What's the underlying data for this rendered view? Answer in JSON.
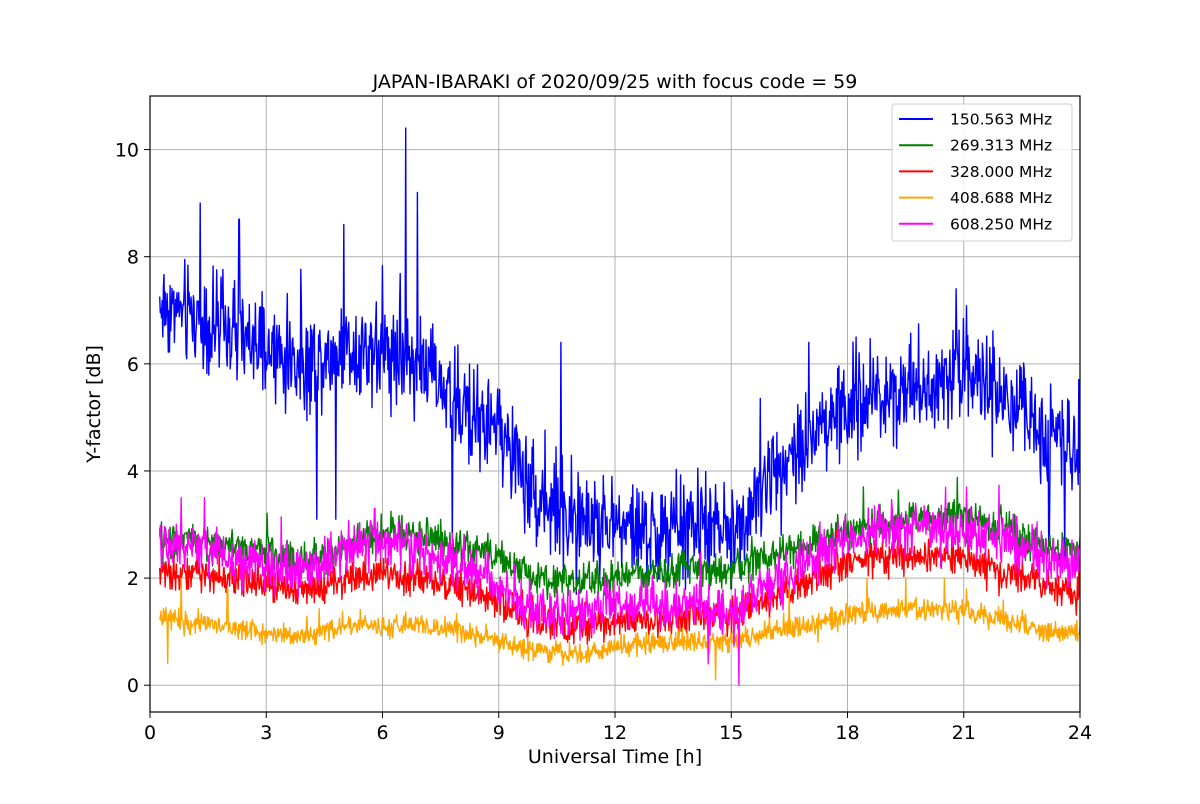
{
  "chart_data": {
    "type": "line",
    "title": "JAPAN-IBARAKI of 2020/09/25 with focus code = 59",
    "xlabel": "Universal Time [h]",
    "ylabel": "Y-factor [dB]",
    "xlim": [
      0,
      24
    ],
    "ylim": [
      -0.5,
      11
    ],
    "xticks": [
      0,
      3,
      6,
      9,
      12,
      15,
      18,
      21,
      24
    ],
    "xtick_labels": [
      "0",
      "3",
      "6",
      "9",
      "12",
      "15",
      "18",
      "21",
      "24"
    ],
    "yticks": [
      0,
      2,
      4,
      6,
      8,
      10
    ],
    "ytick_labels": [
      "0",
      "2",
      "4",
      "6",
      "8",
      "10"
    ],
    "grid": true,
    "legend_position": "top-right",
    "x_start": 0.25,
    "x_end": 24,
    "series": [
      {
        "name": "150.563 MHz",
        "color": "#0000ff",
        "noise": 0.7,
        "spikes": [
          [
            6.6,
            10.4
          ],
          [
            6.9,
            9.2
          ],
          [
            1.3,
            9.0
          ],
          [
            5.0,
            8.6
          ],
          [
            2.3,
            8.7
          ],
          [
            20.8,
            7.4
          ],
          [
            10.6,
            6.4
          ],
          [
            17.0,
            6.4
          ]
        ],
        "dips": [
          [
            4.3,
            3.1
          ],
          [
            4.8,
            3.1
          ],
          [
            7.8,
            2.6
          ],
          [
            11.0,
            1.7
          ],
          [
            15.0,
            1.8
          ],
          [
            23.2,
            2.6
          ],
          [
            23.6,
            2.4
          ]
        ],
        "trend": [
          [
            0.25,
            7.1
          ],
          [
            1,
            6.9
          ],
          [
            2,
            6.6
          ],
          [
            3,
            6.2
          ],
          [
            4,
            6.0
          ],
          [
            5,
            6.3
          ],
          [
            6,
            6.3
          ],
          [
            7,
            6.0
          ],
          [
            8,
            5.2
          ],
          [
            9,
            4.8
          ],
          [
            10,
            3.5
          ],
          [
            11,
            3.1
          ],
          [
            12,
            3.0
          ],
          [
            13,
            2.8
          ],
          [
            14,
            3.0
          ],
          [
            15,
            2.8
          ],
          [
            15.5,
            3.4
          ],
          [
            16,
            3.9
          ],
          [
            17,
            4.7
          ],
          [
            18,
            5.2
          ],
          [
            19,
            5.5
          ],
          [
            20,
            5.6
          ],
          [
            21,
            6.0
          ],
          [
            22,
            5.3
          ],
          [
            23,
            4.8
          ],
          [
            24,
            4.6
          ]
        ]
      },
      {
        "name": "269.313 MHz",
        "color": "#008000",
        "noise": 0.25,
        "spikes": [],
        "dips": [],
        "trend": [
          [
            0.25,
            2.7
          ],
          [
            1,
            2.7
          ],
          [
            2,
            2.6
          ],
          [
            3,
            2.5
          ],
          [
            4,
            2.3
          ],
          [
            5,
            2.6
          ],
          [
            6,
            2.9
          ],
          [
            7,
            2.8
          ],
          [
            8,
            2.6
          ],
          [
            9,
            2.4
          ],
          [
            10,
            2.0
          ],
          [
            11,
            1.9
          ],
          [
            12,
            2.0
          ],
          [
            13,
            2.1
          ],
          [
            14,
            2.2
          ],
          [
            15,
            2.1
          ],
          [
            16,
            2.4
          ],
          [
            17,
            2.6
          ],
          [
            18,
            2.9
          ],
          [
            19,
            3.0
          ],
          [
            20,
            3.1
          ],
          [
            21,
            3.2
          ],
          [
            22,
            2.9
          ],
          [
            23,
            2.6
          ],
          [
            24,
            2.5
          ]
        ]
      },
      {
        "name": "328.000 MHz",
        "color": "#ff0000",
        "noise": 0.25,
        "spikes": [],
        "dips": [],
        "trend": [
          [
            0.25,
            2.1
          ],
          [
            1,
            2.1
          ],
          [
            2,
            2.0
          ],
          [
            3,
            1.9
          ],
          [
            4,
            1.8
          ],
          [
            5,
            2.0
          ],
          [
            6,
            2.1
          ],
          [
            7,
            2.0
          ],
          [
            8,
            1.8
          ],
          [
            9,
            1.6
          ],
          [
            10,
            1.2
          ],
          [
            11,
            1.1
          ],
          [
            12,
            1.2
          ],
          [
            13,
            1.2
          ],
          [
            14,
            1.3
          ],
          [
            15,
            1.3
          ],
          [
            16,
            1.6
          ],
          [
            17,
            1.9
          ],
          [
            18,
            2.3
          ],
          [
            19,
            2.4
          ],
          [
            20,
            2.4
          ],
          [
            21,
            2.4
          ],
          [
            22,
            2.1
          ],
          [
            23,
            1.9
          ],
          [
            24,
            1.7
          ]
        ]
      },
      {
        "name": "408.688 MHz",
        "color": "#ffa500",
        "noise": 0.15,
        "spikes": [
          [
            0.8,
            2.0
          ],
          [
            2.0,
            1.8
          ],
          [
            16.5,
            1.8
          ],
          [
            18.5,
            2.0
          ],
          [
            19.5,
            2.0
          ],
          [
            20.5,
            2.0
          ]
        ],
        "dips": [
          [
            0.45,
            0.4
          ],
          [
            14.6,
            0.1
          ]
        ],
        "trend": [
          [
            0.25,
            1.3
          ],
          [
            1,
            1.2
          ],
          [
            2,
            1.1
          ],
          [
            3,
            1.0
          ],
          [
            4,
            0.9
          ],
          [
            5,
            1.1
          ],
          [
            6,
            1.1
          ],
          [
            7,
            1.1
          ],
          [
            8,
            1.0
          ],
          [
            9,
            0.8
          ],
          [
            10,
            0.6
          ],
          [
            11,
            0.6
          ],
          [
            12,
            0.7
          ],
          [
            13,
            0.8
          ],
          [
            14,
            0.8
          ],
          [
            15,
            0.8
          ],
          [
            16,
            1.0
          ],
          [
            17,
            1.1
          ],
          [
            18,
            1.3
          ],
          [
            19,
            1.4
          ],
          [
            20,
            1.4
          ],
          [
            21,
            1.4
          ],
          [
            22,
            1.2
          ],
          [
            23,
            1.0
          ],
          [
            24,
            1.0
          ]
        ]
      },
      {
        "name": "608.250 MHz",
        "color": "#ff00ff",
        "noise": 0.35,
        "spikes": [
          [
            0.8,
            3.5
          ],
          [
            1.4,
            3.5
          ],
          [
            5.8,
            3.3
          ]
        ],
        "dips": [
          [
            15.2,
            0.0
          ],
          [
            14.4,
            0.4
          ]
        ],
        "trend": [
          [
            0.25,
            2.6
          ],
          [
            1,
            2.6
          ],
          [
            2,
            2.4
          ],
          [
            3,
            2.2
          ],
          [
            4,
            2.1
          ],
          [
            5,
            2.5
          ],
          [
            6,
            2.7
          ],
          [
            7,
            2.5
          ],
          [
            8,
            2.2
          ],
          [
            9,
            1.9
          ],
          [
            10,
            1.4
          ],
          [
            11,
            1.3
          ],
          [
            12,
            1.5
          ],
          [
            13,
            1.5
          ],
          [
            14,
            1.5
          ],
          [
            15,
            1.3
          ],
          [
            16,
            1.9
          ],
          [
            17,
            2.3
          ],
          [
            18,
            2.7
          ],
          [
            19,
            2.9
          ],
          [
            20,
            3.0
          ],
          [
            21,
            2.9
          ],
          [
            22,
            2.7
          ],
          [
            23,
            2.4
          ],
          [
            24,
            2.2
          ]
        ]
      }
    ]
  }
}
